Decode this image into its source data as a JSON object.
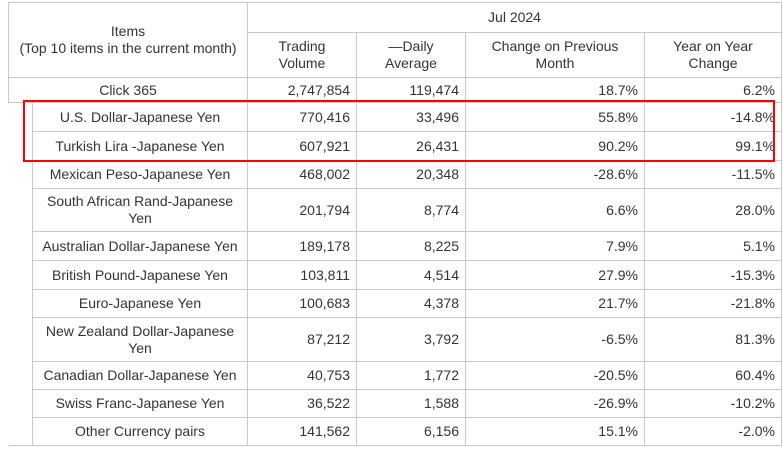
{
  "header": {
    "items_title": "Items",
    "items_subtitle": "(Top 10 items in the current month)",
    "period": "Jul 2024",
    "columns": [
      "Trading Volume",
      "—Daily Average",
      "Change on Previous Month",
      "Year on Year Change"
    ]
  },
  "total_row": {
    "name": "Click 365",
    "volume": "2,747,854",
    "daily": "119,474",
    "mom": "18.7%",
    "yoy": "6.2%"
  },
  "rows": [
    {
      "name": "U.S. Dollar-Japanese Yen",
      "volume": "770,416",
      "daily": "33,496",
      "mom": "55.8%",
      "yoy": "-14.8%"
    },
    {
      "name": "Turkish Lira -Japanese Yen",
      "volume": "607,921",
      "daily": "26,431",
      "mom": "90.2%",
      "yoy": "99.1%"
    },
    {
      "name": "Mexican Peso-Japanese Yen",
      "volume": "468,002",
      "daily": "20,348",
      "mom": "-28.6%",
      "yoy": "-11.5%"
    },
    {
      "name": "South African Rand-Japanese Yen",
      "volume": "201,794",
      "daily": "8,774",
      "mom": "6.6%",
      "yoy": "28.0%"
    },
    {
      "name": "Australian Dollar-Japanese Yen",
      "volume": "189,178",
      "daily": "8,225",
      "mom": "7.9%",
      "yoy": "5.1%"
    },
    {
      "name": "British Pound-Japanese Yen",
      "volume": "103,811",
      "daily": "4,514",
      "mom": "27.9%",
      "yoy": "-15.3%"
    },
    {
      "name": "Euro-Japanese Yen",
      "volume": "100,683",
      "daily": "4,378",
      "mom": "21.7%",
      "yoy": "-21.8%"
    },
    {
      "name": "New Zealand Dollar-Japanese Yen",
      "volume": "87,212",
      "daily": "3,792",
      "mom": "-6.5%",
      "yoy": "81.3%"
    },
    {
      "name": "Canadian Dollar-Japanese Yen",
      "volume": "40,753",
      "daily": "1,772",
      "mom": "-20.5%",
      "yoy": "60.4%"
    },
    {
      "name": "Swiss Franc-Japanese Yen",
      "volume": "36,522",
      "daily": "1,588",
      "mom": "-26.9%",
      "yoy": "-10.2%"
    },
    {
      "name": "Other Currency pairs",
      "volume": "141,562",
      "daily": "6,156",
      "mom": "15.1%",
      "yoy": "-2.0%"
    }
  ],
  "highlight": {
    "color": "#ff0000"
  }
}
